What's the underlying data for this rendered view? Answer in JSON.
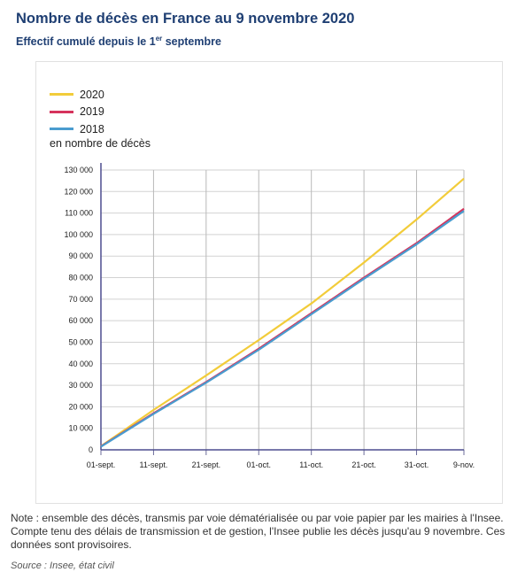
{
  "header": {
    "title": "Nombre de décès en France au 9 novembre 2020",
    "subtitle_pre": "Effectif cumulé depuis le 1",
    "subtitle_sup": "er",
    "subtitle_post": " septembre"
  },
  "chart_data": {
    "type": "line",
    "ylabel": "en nombre de décès",
    "categories": [
      "01-sept.",
      "11-sept.",
      "21-sept.",
      "01-oct.",
      "11-oct.",
      "21-oct.",
      "31-oct.",
      "9-nov."
    ],
    "x_days": [
      0,
      10,
      20,
      30,
      40,
      50,
      60,
      69
    ],
    "ylim": [
      0,
      130000
    ],
    "yticks": [
      0,
      10000,
      20000,
      30000,
      40000,
      50000,
      60000,
      70000,
      80000,
      90000,
      100000,
      110000,
      120000,
      130000
    ],
    "ytick_labels": [
      "0",
      "10 000",
      "20 000",
      "30 000",
      "40 000",
      "50 000",
      "60 000",
      "70 000",
      "80 000",
      "90 000",
      "100 000",
      "110 000",
      "120 000",
      "130 000"
    ],
    "grid": true,
    "legend_position": "top-left",
    "series": [
      {
        "name": "2020",
        "color": "#f2cc3a",
        "x": [
          0,
          10,
          20,
          30,
          40,
          50,
          60,
          69
        ],
        "values": [
          1700,
          18500,
          34500,
          51000,
          68000,
          87000,
          107000,
          126000
        ]
      },
      {
        "name": "2019",
        "color": "#d6335c",
        "x": [
          0,
          10,
          20,
          30,
          40,
          50,
          60,
          69
        ],
        "values": [
          1600,
          17000,
          31500,
          47000,
          63500,
          80000,
          96000,
          112000
        ]
      },
      {
        "name": "2018",
        "color": "#4a9ccf",
        "x": [
          0,
          10,
          20,
          30,
          40,
          50,
          60,
          69
        ],
        "values": [
          1500,
          16700,
          31200,
          46500,
          63000,
          79500,
          95500,
          111000
        ]
      }
    ]
  },
  "footer": {
    "note": "Note : ensemble des décès, transmis par voie dématérialisée ou par voie papier par les mairies à l'Insee. Compte tenu des délais de transmission et de gestion, l'Insee publie les décès jusqu'au 9 novembre. Ces données sont provisoires.",
    "source": "Source : Insee, état civil"
  }
}
